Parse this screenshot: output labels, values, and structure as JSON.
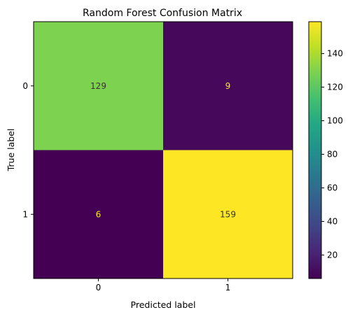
{
  "chart_data": {
    "type": "heatmap",
    "title": "Random Forest Confusion Matrix",
    "xlabel": "Predicted label",
    "ylabel": "True label",
    "x_categories": [
      "0",
      "1"
    ],
    "y_categories": [
      "0",
      "1"
    ],
    "values": [
      [
        129,
        9
      ],
      [
        6,
        159
      ]
    ],
    "colormap": "viridis",
    "colorbar": {
      "range": [
        6,
        159
      ],
      "ticks": [
        20,
        40,
        60,
        80,
        100,
        120,
        140
      ],
      "tick_labels": [
        "20",
        "40",
        "60",
        "80",
        "100",
        "120",
        "140"
      ]
    },
    "grid": false
  }
}
